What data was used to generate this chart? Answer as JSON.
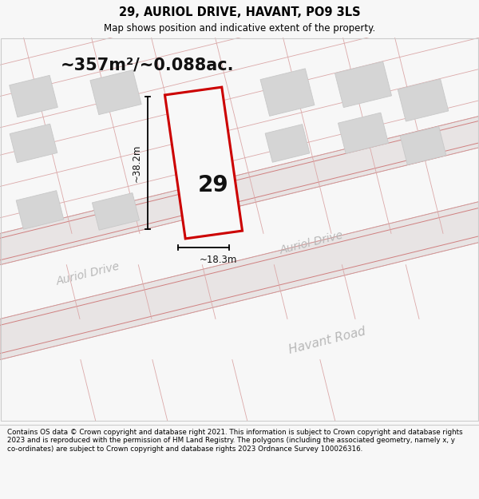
{
  "title_line1": "29, AURIOL DRIVE, HAVANT, PO9 3LS",
  "title_line2": "Map shows position and indicative extent of the property.",
  "area_text": "~357m²/~0.088ac.",
  "label_number": "29",
  "dim_width": "~18.3m",
  "dim_height": "~38.2m",
  "road_label1": "Auriol Drive",
  "road_label2": "Auriol Drive",
  "road_label3": "Havant Road",
  "footer_text": "Contains OS data © Crown copyright and database right 2021. This information is subject to Crown copyright and database rights 2023 and is reproduced with the permission of HM Land Registry. The polygons (including the associated geometry, namely x, y co-ordinates) are subject to Crown copyright and database rights 2023 Ordnance Survey 100026316.",
  "bg_color": "#f7f7f7",
  "map_bg": "#eeecec",
  "plot_fill": "#ffffff",
  "plot_outline": "#cc0000",
  "building_fill": "#d5d5d5",
  "road_fill": "#e8e4e4",
  "road_line_color": "#d8a0a0",
  "title_color": "#000000",
  "footer_color": "#000000",
  "road_text_color": "#b0b0b0",
  "plot_line_color": "#d08080",
  "street_outline_color": "#e0b0b0"
}
